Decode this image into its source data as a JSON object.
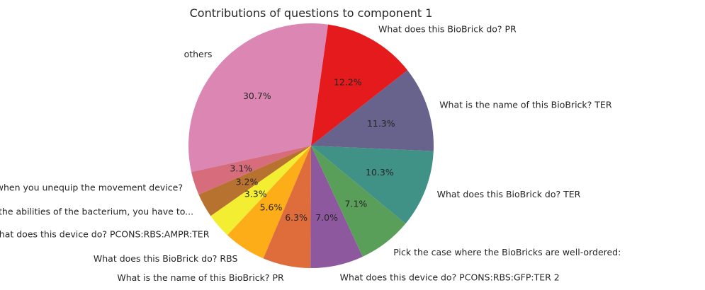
{
  "chart_data": {
    "type": "pie",
    "title": "Contributions of questions to component 1",
    "slices": [
      {
        "label": "others",
        "value": 30.7,
        "pct": "30.7%",
        "color": "#dc86b3"
      },
      {
        "label": "What happens when you unequip the movement device?",
        "value": 3.1,
        "pct": "3.1%",
        "color": "#d66c7c"
      },
      {
        "label": "In order to modify the abilities of the bacterium, you have to...",
        "value": 3.2,
        "pct": "3.2%",
        "color": "#b8722f"
      },
      {
        "label": "What does this device do? PCONS:RBS:AMPR:TER",
        "value": 3.3,
        "pct": "3.3%",
        "color": "#f4ee33"
      },
      {
        "label": "What does this BioBrick do? RBS",
        "value": 5.6,
        "pct": "5.6%",
        "color": "#fdad18"
      },
      {
        "label": "What is the name of this BioBrick? PR",
        "value": 6.3,
        "pct": "6.3%",
        "color": "#df6d3b"
      },
      {
        "label": "What does this device do? PCONS:RBS:GFP:TER 2",
        "value": 7.0,
        "pct": "7.0%",
        "color": "#8e589f"
      },
      {
        "label": "Pick the case where the BioBricks are well-ordered:",
        "value": 7.1,
        "pct": "7.1%",
        "color": "#5a9f59"
      },
      {
        "label": "What does this BioBrick do? TER",
        "value": 10.3,
        "pct": "10.3%",
        "color": "#419286"
      },
      {
        "label": "What is the name of this BioBrick? TER",
        "value": 11.3,
        "pct": "11.3%",
        "color": "#67638c"
      },
      {
        "label": "What does this BioBrick do? PR",
        "value": 12.2,
        "pct": "12.2%",
        "color": "#e41a1d"
      }
    ]
  }
}
